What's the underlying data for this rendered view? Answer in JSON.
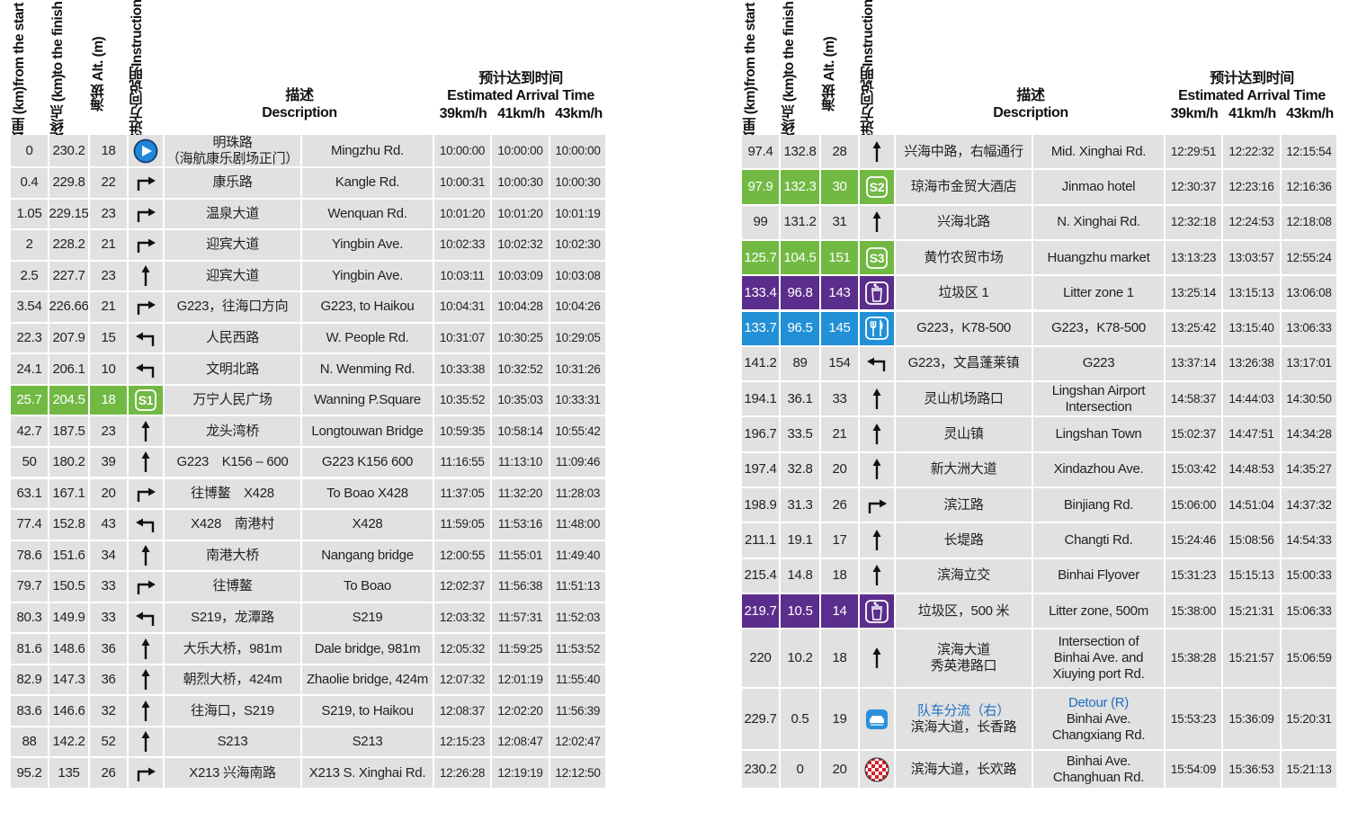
{
  "header": {
    "km": [
      "公里 (km)",
      "from the start"
    ],
    "to_finish": [
      "距终点 (km)",
      "to the finish"
    ],
    "alt": [
      "海拔 Alt. (m)"
    ],
    "instruction": [
      "前进方向说明",
      "Instruction"
    ],
    "description": [
      "描述",
      "Description"
    ],
    "arrival": [
      "预计达到时间",
      "Estimated Arrival Time"
    ],
    "speeds": [
      "39km/h",
      "41km/h",
      "43km/h"
    ]
  },
  "tables": [
    {
      "rows": [
        {
          "km": 0,
          "to_finish": 230.2,
          "alt": 18,
          "icon": "start",
          "description_cn": [
            "明珠路",
            "（海航康乐剧场正门）"
          ],
          "description_en": "Mingzhu Rd.",
          "times": [
            "10:00:00",
            "10:00:00",
            "10:00:00"
          ]
        },
        {
          "km": 0.4,
          "to_finish": 229.8,
          "alt": 22,
          "icon": "right",
          "description_cn": "康乐路",
          "description_en": "Kangle Rd.",
          "times": [
            "10:00:31",
            "10:00:30",
            "10:00:30"
          ]
        },
        {
          "km": 1.05,
          "to_finish": 229.15,
          "alt": 23,
          "icon": "right",
          "description_cn": "温泉大道",
          "description_en": "Wenquan Rd.",
          "times": [
            "10:01:20",
            "10:01:20",
            "10:01:19"
          ]
        },
        {
          "km": 2,
          "to_finish": 228.2,
          "alt": 21,
          "icon": "right",
          "description_cn": "迎宾大道",
          "description_en": "Yingbin Ave.",
          "times": [
            "10:02:33",
            "10:02:32",
            "10:02:30"
          ]
        },
        {
          "km": 2.5,
          "to_finish": 227.7,
          "alt": 23,
          "icon": "straight",
          "description_cn": "迎宾大道",
          "description_en": "Yingbin Ave.",
          "times": [
            "10:03:11",
            "10:03:09",
            "10:03:08"
          ]
        },
        {
          "km": 3.54,
          "to_finish": 226.66,
          "alt": 21,
          "icon": "right",
          "description_cn": "G223，往海口方向",
          "description_en": "G223, to Haikou",
          "times": [
            "10:04:31",
            "10:04:28",
            "10:04:26"
          ]
        },
        {
          "km": 22.3,
          "to_finish": 207.9,
          "alt": 15,
          "icon": "left",
          "description_cn": "人民西路",
          "description_en": "W. People Rd.",
          "times": [
            "10:31:07",
            "10:30:25",
            "10:29:05"
          ]
        },
        {
          "km": 24.1,
          "to_finish": 206.1,
          "alt": 10,
          "icon": "left",
          "description_cn": "文明北路",
          "description_en": "N. Wenming Rd.",
          "times": [
            "10:33:38",
            "10:32:52",
            "10:31:26"
          ]
        },
        {
          "km": 25.7,
          "to_finish": 204.5,
          "alt": 18,
          "icon": "sprint",
          "icon_label": "S1",
          "color": "#72b944",
          "description_cn": "万宁人民广场",
          "description_en": "Wanning P.Square",
          "times": [
            "10:35:52",
            "10:35:03",
            "10:33:31"
          ]
        },
        {
          "km": 42.7,
          "to_finish": 187.5,
          "alt": 23,
          "icon": "straight",
          "description_cn": "龙头湾桥",
          "description_en": "Longtouwan Bridge",
          "times": [
            "10:59:35",
            "10:58:14",
            "10:55:42"
          ]
        },
        {
          "km": 50,
          "to_finish": 180.2,
          "alt": 39,
          "icon": "straight",
          "description_cn": "G223　K156 – 600",
          "description_en": "G223 K156 600",
          "times": [
            "11:16:55",
            "11:13:10",
            "11:09:46"
          ]
        },
        {
          "km": 63.1,
          "to_finish": 167.1,
          "alt": 20,
          "icon": "right",
          "description_cn": "往博鳌　X428",
          "description_en": "To Boao X428",
          "times": [
            "11:37:05",
            "11:32:20",
            "11:28:03"
          ]
        },
        {
          "km": 77.4,
          "to_finish": 152.8,
          "alt": 43,
          "icon": "left",
          "description_cn": "X428　南港村",
          "description_en": "X428",
          "times": [
            "11:59:05",
            "11:53:16",
            "11:48:00"
          ]
        },
        {
          "km": 78.6,
          "to_finish": 151.6,
          "alt": 34,
          "icon": "straight",
          "description_cn": "南港大桥",
          "description_en": "Nangang bridge",
          "times": [
            "12:00:55",
            "11:55:01",
            "11:49:40"
          ]
        },
        {
          "km": 79.7,
          "to_finish": 150.5,
          "alt": 33,
          "icon": "right",
          "description_cn": "往博鳌",
          "description_en": "To Boao",
          "times": [
            "12:02:37",
            "11:56:38",
            "11:51:13"
          ]
        },
        {
          "km": 80.3,
          "to_finish": 149.9,
          "alt": 33,
          "icon": "left",
          "description_cn": "S219，龙潭路",
          "description_en": "S219",
          "times": [
            "12:03:32",
            "11:57:31",
            "11:52:03"
          ]
        },
        {
          "km": 81.6,
          "to_finish": 148.6,
          "alt": 36,
          "icon": "straight",
          "description_cn": "大乐大桥，981m",
          "description_en": "Dale bridge, 981m",
          "times": [
            "12:05:32",
            "11:59:25",
            "11:53:52"
          ]
        },
        {
          "km": 82.9,
          "to_finish": 147.3,
          "alt": 36,
          "icon": "straight",
          "description_cn": "朝烈大桥，424m",
          "description_en": "Zhaolie bridge, 424m",
          "times": [
            "12:07:32",
            "12:01:19",
            "11:55:40"
          ]
        },
        {
          "km": 83.6,
          "to_finish": 146.6,
          "alt": 32,
          "icon": "straight",
          "description_cn": "往海口，S219",
          "description_en": "S219, to Haikou",
          "times": [
            "12:08:37",
            "12:02:20",
            "11:56:39"
          ]
        },
        {
          "km": 88,
          "to_finish": 142.2,
          "alt": 52,
          "icon": "straight",
          "description_cn": "S213",
          "description_en": "S213",
          "times": [
            "12:15:23",
            "12:08:47",
            "12:02:47"
          ]
        },
        {
          "km": 95.2,
          "to_finish": 135,
          "alt": 26,
          "icon": "right",
          "description_cn": "X213 兴海南路",
          "description_en": "X213 S. Xinghai Rd.",
          "times": [
            "12:26:28",
            "12:19:19",
            "12:12:50"
          ]
        }
      ]
    },
    {
      "rows": [
        {
          "km": 97.4,
          "to_finish": 132.8,
          "alt": 28,
          "icon": "straight",
          "description_cn": "兴海中路，右幅通行",
          "description_en": "Mid. Xinghai Rd.",
          "times": [
            "12:29:51",
            "12:22:32",
            "12:15:54"
          ]
        },
        {
          "km": 97.9,
          "to_finish": 132.3,
          "alt": 30,
          "icon": "sprint",
          "icon_label": "S2",
          "color": "#72b944",
          "description_cn": "琼海市金贸大酒店",
          "description_en": "Jinmao hotel",
          "times": [
            "12:30:37",
            "12:23:16",
            "12:16:36"
          ]
        },
        {
          "km": 99,
          "to_finish": 131.2,
          "alt": 31,
          "icon": "straight",
          "description_cn": "兴海北路",
          "description_en": "N. Xinghai Rd.",
          "times": [
            "12:32:18",
            "12:24:53",
            "12:18:08"
          ]
        },
        {
          "km": 125.7,
          "to_finish": 104.5,
          "alt": 151,
          "icon": "sprint",
          "icon_label": "S3",
          "color": "#72b944",
          "description_cn": "黄竹农贸市场",
          "description_en": "Huangzhu market",
          "times": [
            "13:13:23",
            "13:03:57",
            "12:55:24"
          ]
        },
        {
          "km": 133.4,
          "to_finish": 96.8,
          "alt": 143,
          "icon": "litter",
          "color": "#5b2d8c",
          "description_cn": "垃圾区 1",
          "description_en": "Litter zone 1",
          "times": [
            "13:25:14",
            "13:15:13",
            "13:06:08"
          ]
        },
        {
          "km": 133.7,
          "to_finish": 96.5,
          "alt": 145,
          "icon": "food",
          "color": "#2190d6",
          "description_cn": "G223，K78-500",
          "description_en": "G223，K78-500",
          "times": [
            "13:25:42",
            "13:15:40",
            "13:06:33"
          ]
        },
        {
          "km": 141.2,
          "to_finish": 89,
          "alt": 154,
          "icon": "left",
          "description_cn": "G223，文昌蓬莱镇",
          "description_en": "G223",
          "times": [
            "13:37:14",
            "13:26:38",
            "13:17:01"
          ]
        },
        {
          "km": 194.1,
          "to_finish": 36.1,
          "alt": 33,
          "icon": "straight",
          "description_cn": "灵山机场路口",
          "description_en": [
            "Lingshan Airport",
            "Intersection"
          ],
          "times": [
            "14:58:37",
            "14:44:03",
            "14:30:50"
          ]
        },
        {
          "km": 196.7,
          "to_finish": 33.5,
          "alt": 21,
          "icon": "straight",
          "description_cn": "灵山镇",
          "description_en": "Lingshan Town",
          "times": [
            "15:02:37",
            "14:47:51",
            "14:34:28"
          ]
        },
        {
          "km": 197.4,
          "to_finish": 32.8,
          "alt": 20,
          "icon": "straight",
          "description_cn": "新大洲大道",
          "description_en": "Xindazhou Ave.",
          "times": [
            "15:03:42",
            "14:48:53",
            "14:35:27"
          ]
        },
        {
          "km": 198.9,
          "to_finish": 31.3,
          "alt": 26,
          "icon": "right",
          "description_cn": "滨江路",
          "description_en": "Binjiang Rd.",
          "times": [
            "15:06:00",
            "14:51:04",
            "14:37:32"
          ]
        },
        {
          "km": 211.1,
          "to_finish": 19.1,
          "alt": 17,
          "icon": "straight",
          "description_cn": "长堤路",
          "description_en": "Changti Rd.",
          "times": [
            "15:24:46",
            "15:08:56",
            "14:54:33"
          ]
        },
        {
          "km": 215.4,
          "to_finish": 14.8,
          "alt": 18,
          "icon": "straight",
          "description_cn": "滨海立交",
          "description_en": "Binhai Flyover",
          "times": [
            "15:31:23",
            "15:15:13",
            "15:00:33"
          ]
        },
        {
          "km": 219.7,
          "to_finish": 10.5,
          "alt": 14,
          "icon": "litter",
          "color": "#5b2d8c",
          "description_cn": "垃圾区，500 米",
          "description_en": "Litter zone, 500m",
          "times": [
            "15:38:00",
            "15:21:31",
            "15:06:33"
          ]
        },
        {
          "km": 220,
          "to_finish": 10.2,
          "alt": 18,
          "icon": "straight",
          "description_cn": [
            "滨海大道",
            "秀英港路口"
          ],
          "description_en": [
            "Intersection of",
            "Binhai Ave. and",
            "Xiuying port Rd."
          ],
          "times": [
            "15:38:28",
            "15:21:57",
            "15:06:59"
          ]
        },
        {
          "km": 229.7,
          "to_finish": 0.5,
          "alt": 19,
          "icon": "detour",
          "lead_color": "#1f6fc0",
          "description_cn": [
            "队车分流（右）",
            "滨海大道，长香路"
          ],
          "description_en": [
            "Detour (R)",
            "Binhai Ave.",
            "Changxiang Rd."
          ],
          "times": [
            "15:53:23",
            "15:36:09",
            "15:20:31"
          ]
        },
        {
          "km": 230.2,
          "to_finish": 0,
          "alt": 20,
          "icon": "finish",
          "description_cn": "滨海大道，长欢路",
          "description_en": [
            "Binhai Ave.",
            "Changhuan Rd."
          ],
          "times": [
            "15:54:09",
            "15:36:53",
            "15:21:13"
          ]
        }
      ]
    }
  ]
}
